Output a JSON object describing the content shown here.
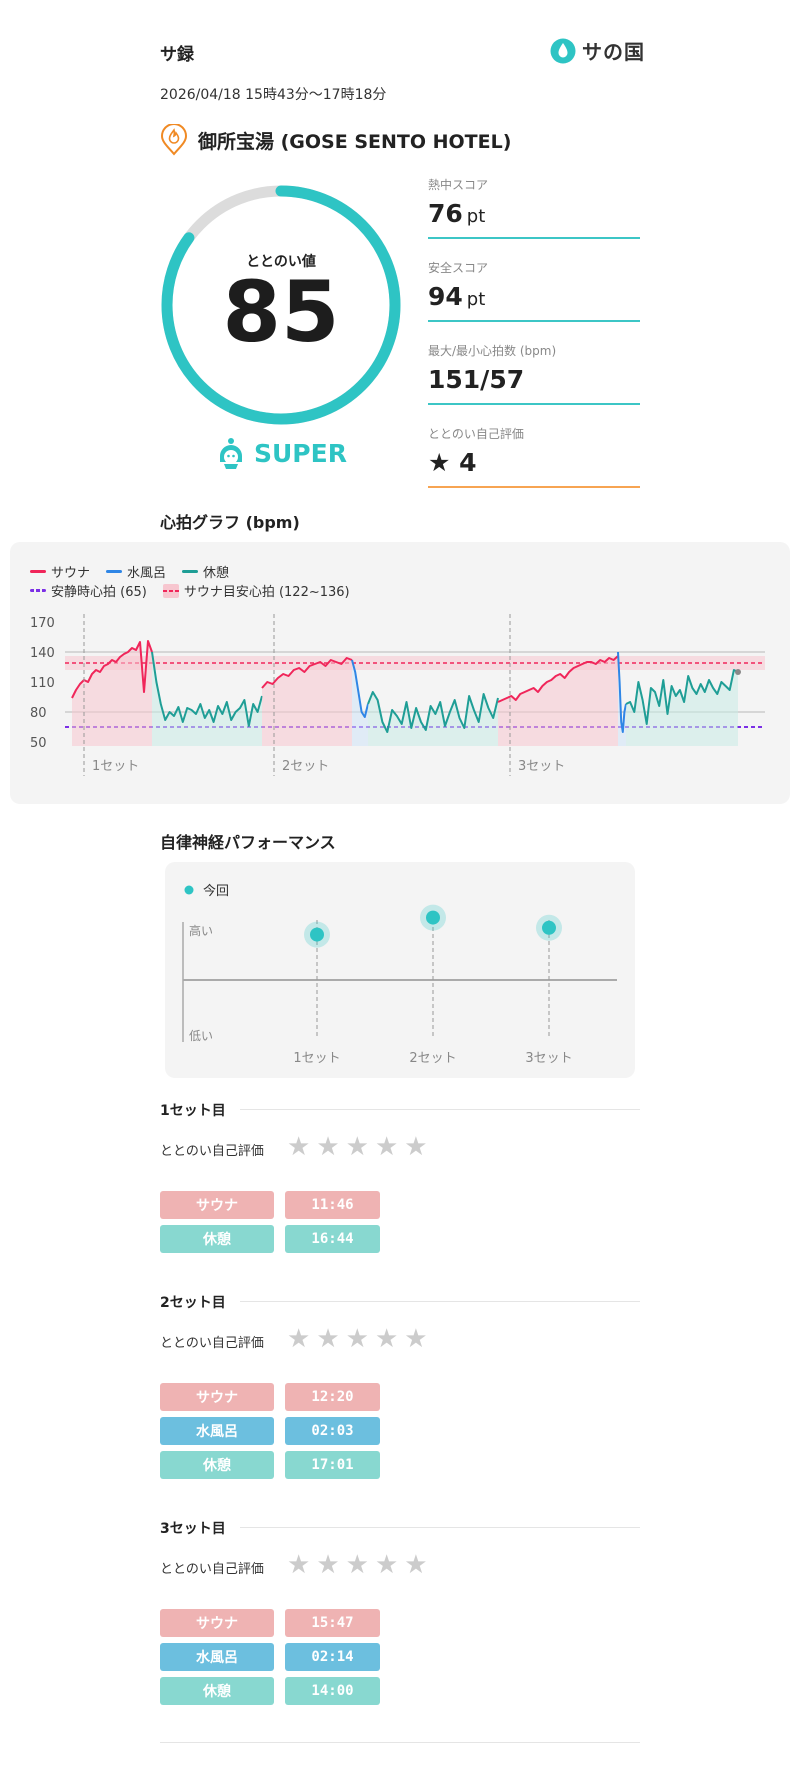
{
  "header": {
    "title": "サ録",
    "logo_text": "サの国"
  },
  "session": {
    "date_range": "2026/04/18 15時43分〜17時18分",
    "facility": "御所宝湯 (GOSE SENTO HOTEL)"
  },
  "gauge": {
    "label": "ととのい値",
    "value": "85",
    "max": 100,
    "rank": "SUPER",
    "color": "#2ec4c4"
  },
  "scores": [
    {
      "label": "熱中スコア",
      "value": "76",
      "unit": "pt"
    },
    {
      "label": "安全スコア",
      "value": "94",
      "unit": "pt"
    },
    {
      "label": "最大/最小心拍数 (bpm)",
      "value": "151/57",
      "unit": ""
    },
    {
      "label": "ととのい自己評価",
      "value": "★ 4",
      "unit": ""
    }
  ],
  "heart_graph": {
    "title": "心拍グラフ (bpm)",
    "legend": {
      "sauna": "サウナ",
      "water": "水風呂",
      "rest": "休憩",
      "resting": "安静時心拍 (65)",
      "target": "サウナ目安心拍 (122~136)"
    },
    "y_ticks": [
      "170",
      "140",
      "110",
      "80",
      "50"
    ],
    "set_labels": [
      "1セット",
      "2セット",
      "3セット"
    ],
    "colors": {
      "sauna": "#f0265a",
      "water": "#2f86e6",
      "rest": "#1f9e96",
      "resting": "#7b2fe6",
      "target": "#f0265a"
    }
  },
  "chart_data": {
    "type": "line",
    "ylim": [
      50,
      170
    ],
    "y_ticks": [
      170,
      140,
      110,
      80,
      50
    ],
    "resting_hr": 65,
    "target_range": [
      122,
      136
    ],
    "series": [
      {
        "name": "サウナ",
        "segments": [
          [
            94,
            102,
            108,
            112,
            110,
            118,
            122,
            120,
            126,
            128,
            132,
            130,
            135,
            138,
            140,
            144,
            142,
            150,
            100,
            151,
            140
          ],
          [
            104,
            110,
            108,
            114,
            118,
            116,
            122,
            124,
            120,
            126,
            128,
            130,
            126,
            132,
            130,
            128,
            134,
            132
          ],
          [
            90,
            92,
            94,
            96,
            92,
            98,
            100,
            102,
            104,
            100,
            106,
            110,
            112,
            116,
            118,
            114,
            120,
            124,
            126,
            128,
            130,
            130,
            128,
            132,
            130,
            134,
            132,
            136
          ]
        ]
      },
      {
        "name": "水風呂",
        "segments": [
          [
            132,
            120,
            100,
            80,
            75,
            88
          ],
          [
            140,
            110,
            70,
            60,
            80,
            88
          ]
        ]
      },
      {
        "name": "休憩",
        "segments": [
          [
            140,
            110,
            88,
            72,
            80,
            76,
            85,
            70,
            84,
            82,
            78,
            88,
            74,
            82,
            70,
            86,
            78,
            90,
            72,
            80,
            84,
            92,
            66,
            88,
            80,
            96
          ],
          [
            88,
            100,
            92,
            70,
            60,
            82,
            76,
            68,
            90,
            64,
            84,
            70,
            62,
            86,
            78,
            90,
            66,
            80,
            92,
            74,
            64,
            96,
            82,
            70,
            98,
            84,
            74,
            94
          ],
          [
            88,
            90,
            80,
            110,
            92,
            68,
            104,
            100,
            86,
            112,
            78,
            106,
            96,
            102,
            90,
            116,
            104,
            98,
            108,
            100,
            112,
            104,
            98,
            110,
            106,
            102,
            122,
            120
          ]
        ]
      }
    ],
    "sets": [
      "1セット",
      "2セット",
      "3セット"
    ]
  },
  "ans": {
    "title": "自律神経パフォーマンス",
    "legend": "今回",
    "high": "高い",
    "low": "低い",
    "sets": [
      "1セット",
      "2セット",
      "3セット"
    ],
    "levels": [
      0.62,
      0.72,
      0.66
    ],
    "color": "#2ec4c4"
  },
  "sets": [
    {
      "title": "1セット目",
      "rating_label": "ととのい自己評価",
      "stars": 0,
      "rows": [
        {
          "label": "サウナ",
          "time": "11:46",
          "kind": "sauna"
        },
        {
          "label": "休憩",
          "time": "16:44",
          "kind": "rest"
        }
      ]
    },
    {
      "title": "2セット目",
      "rating_label": "ととのい自己評価",
      "stars": 0,
      "rows": [
        {
          "label": "サウナ",
          "time": "12:20",
          "kind": "sauna"
        },
        {
          "label": "水風呂",
          "time": "02:03",
          "kind": "water"
        },
        {
          "label": "休憩",
          "time": "17:01",
          "kind": "rest"
        }
      ]
    },
    {
      "title": "3セット目",
      "rating_label": "ととのい自己評価",
      "stars": 0,
      "rows": [
        {
          "label": "サウナ",
          "time": "15:47",
          "kind": "sauna"
        },
        {
          "label": "水風呂",
          "time": "02:14",
          "kind": "water"
        },
        {
          "label": "休憩",
          "time": "14:00",
          "kind": "rest"
        }
      ]
    }
  ],
  "icons": {
    "logo": "droplet-icon",
    "facility": "flame-pin-icon",
    "rank": "mascot-icon",
    "star": "star-icon"
  }
}
